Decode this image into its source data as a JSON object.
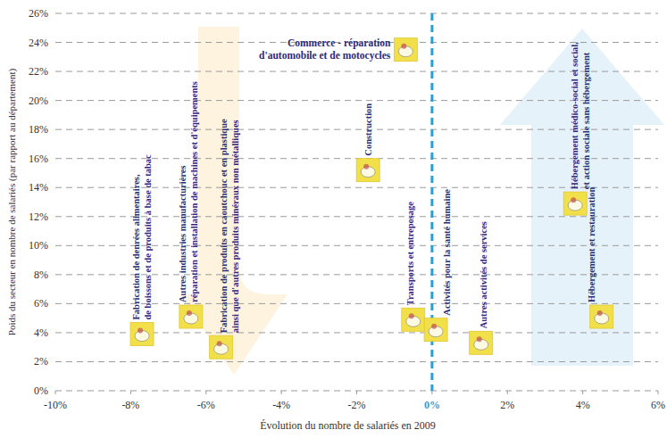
{
  "chart_data": {
    "type": "scatter",
    "x_label": "Évolution du nombre de salariés en 2009",
    "y_label": "Poids du secteur en nombre de salariés (par rapport au département)",
    "x": [
      -7.7,
      -6.4,
      -5.6,
      -0.7,
      -1.7,
      -0.5,
      0.1,
      1.3,
      3.8,
      4.5
    ],
    "values": [
      3.9,
      5.1,
      3.0,
      23.5,
      15.2,
      4.9,
      4.2,
      3.3,
      12.9,
      5.1
    ],
    "point_labels": [
      [
        "Fabrication de denrées alimentaires,",
        "de boissons et de produits à base de tabac"
      ],
      [
        "Autres industries manufacturières",
        "réparation et installation de machines et d'équipements"
      ],
      [
        "Fabrication de produits en caoutchouc et en plastique",
        "ainsi que d'autres produits minéraux non métalliques"
      ],
      [
        "Commerce - réparation",
        "d'automobile et de motocycles"
      ],
      [
        "Construction"
      ],
      [
        "Transports et entreposage"
      ],
      [
        "Activités pour la santé humaine"
      ],
      [
        "Autres activités de services"
      ],
      [
        "Hébergement médico-social et social,",
        "et action sociale sans hébergement"
      ],
      [
        "Hébergement et restauration"
      ]
    ],
    "color": "#f2e04a",
    "xlim": [
      -10,
      6
    ],
    "xticks": [
      {
        "value": -10,
        "label": "-10%"
      },
      {
        "value": -8,
        "label": "-8%"
      },
      {
        "value": -6,
        "label": "-6%"
      },
      {
        "value": -4,
        "label": "-4%"
      },
      {
        "value": -2,
        "label": "-2%"
      },
      {
        "value": 0,
        "label": "0%"
      },
      {
        "value": 2,
        "label": "2%"
      },
      {
        "value": 4,
        "label": "4%"
      },
      {
        "value": 6,
        "label": "6%"
      }
    ],
    "ylim": [
      0,
      26
    ],
    "yticks": [
      {
        "value": 0,
        "label": "0%"
      },
      {
        "value": 2,
        "label": "2%"
      },
      {
        "value": 4,
        "label": "4%"
      },
      {
        "value": 6,
        "label": "6%"
      },
      {
        "value": 8,
        "label": "8%"
      },
      {
        "value": 10,
        "label": "10%"
      },
      {
        "value": 12,
        "label": "12%"
      },
      {
        "value": 14,
        "label": "14%"
      },
      {
        "value": 16,
        "label": "16%"
      },
      {
        "value": 18,
        "label": "18%"
      },
      {
        "value": 20,
        "label": "20%"
      },
      {
        "value": 22,
        "label": "22%"
      },
      {
        "value": 24,
        "label": "24%"
      },
      {
        "value": 26,
        "label": "26%"
      }
    ],
    "grid": true,
    "reference_lines": [
      {
        "x": 0,
        "color": "#2a9fd6"
      }
    ]
  }
}
